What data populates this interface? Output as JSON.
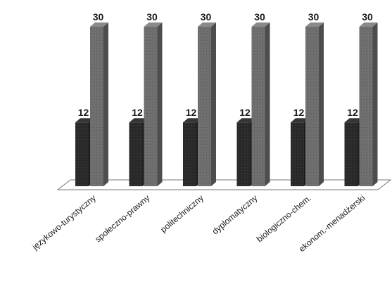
{
  "chart_data": {
    "type": "bar",
    "categories": [
      "językowo-turystyczny",
      "społeczno-prawny",
      "politechniczny",
      "dyplomatyczny",
      "biologiczno-chem.",
      "ekonom.-menadżerski"
    ],
    "series": [
      {
        "values": [
          12,
          12,
          12,
          12,
          12,
          12
        ]
      },
      {
        "values": [
          30,
          30,
          30,
          30,
          30,
          30
        ]
      }
    ],
    "colors": [
      "#2a2a2a",
      "#6e6e6e"
    ],
    "ylim": [
      0,
      30
    ],
    "grid": false,
    "style": "3d-columns"
  }
}
